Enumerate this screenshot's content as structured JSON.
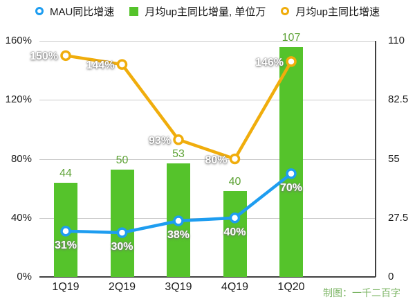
{
  "legend": [
    {
      "label": "MAU同比增速",
      "type": "ring",
      "color": "#1e9df0"
    },
    {
      "label": "月均up主同比增量, 单位万",
      "type": "square",
      "color": "#55c32b"
    },
    {
      "label": "月均up主同比增速",
      "type": "ring",
      "color": "#f0ad0c"
    }
  ],
  "credit": "制图：一千二百字",
  "chart_data": {
    "type": "combo",
    "categories": [
      "1Q19",
      "2Q19",
      "3Q19",
      "4Q19",
      "1Q20"
    ],
    "series": [
      {
        "name": "MAU同比增速",
        "type": "line",
        "axis": "left",
        "color": "#1e9df0",
        "values": [
          31,
          30,
          38,
          40,
          70
        ],
        "point_labels": [
          "31%",
          "30%",
          "38%",
          "40%",
          "70%"
        ]
      },
      {
        "name": "月均up主同比增量, 单位万",
        "type": "bar",
        "axis": "right",
        "color": "#55c32b",
        "label_color": "#5ea336",
        "values": [
          44,
          50,
          53,
          40,
          107
        ],
        "point_labels": [
          "44",
          "50",
          "53",
          "40",
          "107"
        ]
      },
      {
        "name": "月均up主同比增速",
        "type": "line",
        "axis": "left",
        "color": "#f0ad0c",
        "values": [
          150,
          144,
          93,
          80,
          146
        ],
        "point_labels": [
          "150%",
          "144%",
          "93%",
          "80%",
          "146%"
        ]
      }
    ],
    "left_axis": {
      "min": 0,
      "max": 160,
      "ticks": [
        "160%",
        "120%",
        "80%",
        "40%",
        "0%"
      ]
    },
    "right_axis": {
      "min": 0,
      "max": 110,
      "ticks": [
        "110",
        "82.5",
        "55",
        "27.5",
        "0"
      ]
    },
    "grid": true,
    "legend_position": "top"
  }
}
